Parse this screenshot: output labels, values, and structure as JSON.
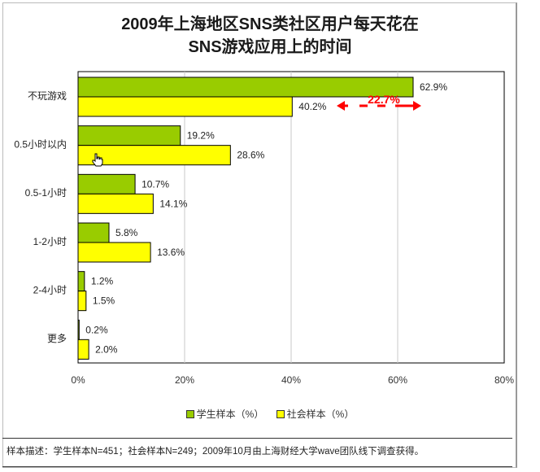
{
  "title_line1": "2009年上海地区SNS类社区用户每天花在",
  "title_line2": "SNS游戏应用上的时间",
  "legend": {
    "student": "学生样本（%）",
    "society": "社会样本（%）"
  },
  "colors": {
    "student": "#99cc00",
    "society": "#ffff00",
    "annotation": "#ff0000"
  },
  "annotation": {
    "label": "22.7%",
    "between": [
      "62.9%",
      "40.2%"
    ]
  },
  "footnote": "样本描述：学生样本N=451；社会样本N=249；2009年10月由上海财经大学wave团队线下调查获得。",
  "cursor_icon": "hand-pointer-icon",
  "chart_data": {
    "type": "bar",
    "orientation": "horizontal",
    "categories": [
      "不玩游戏",
      "0.5小时以内",
      "0.5-1小时",
      "1-2小时",
      "2-4小时",
      "更多"
    ],
    "series": [
      {
        "name": "学生样本（%）",
        "values": [
          62.9,
          19.2,
          10.7,
          5.8,
          1.2,
          0.2
        ],
        "labels": [
          "62.9%",
          "19.2%",
          "10.7%",
          "5.8%",
          "1.2%",
          "0.2%"
        ]
      },
      {
        "name": "社会样本（%）",
        "values": [
          40.2,
          28.6,
          14.1,
          13.6,
          1.5,
          2.0
        ],
        "labels": [
          "40.2%",
          "28.6%",
          "14.1%",
          "13.6%",
          "1.5%",
          "2.0%"
        ]
      }
    ],
    "xlim": [
      0,
      80
    ],
    "xticks": [
      0,
      20,
      40,
      60,
      80
    ],
    "xtick_labels": [
      "0%",
      "20%",
      "40%",
      "60%",
      "80%"
    ],
    "grid": "vertical",
    "legend_position": "bottom"
  }
}
